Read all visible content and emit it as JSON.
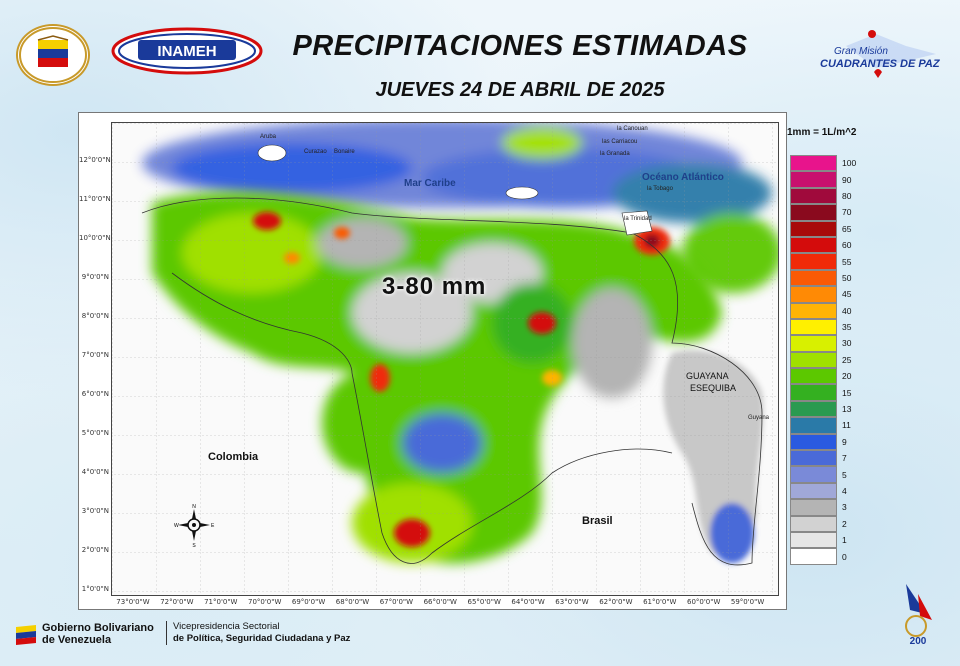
{
  "header": {
    "title": "PRECIPITACIONES ESTIMADAS",
    "date": "JUEVES 24 DE ABRIL DE 2025",
    "inameh_logo_text": "INAMEH",
    "gmcp_line1": "Gran Misión",
    "gmcp_line2": "CUADRANTES DE PAZ"
  },
  "map": {
    "rain_range": "3-80 mm",
    "lat_ticks": [
      "12°0'0\"N",
      "11°0'0\"N",
      "10°0'0\"N",
      "9°0'0\"N",
      "8°0'0\"N",
      "7°0'0\"N",
      "6°0'0\"N",
      "5°0'0\"N",
      "4°0'0\"N",
      "3°0'0\"N",
      "2°0'0\"N",
      "1°0'0\"N"
    ],
    "lon_ticks": [
      "73°0'0\"W",
      "72°0'0\"W",
      "71°0'0\"W",
      "70°0'0\"W",
      "69°0'0\"W",
      "68°0'0\"W",
      "67°0'0\"W",
      "66°0'0\"W",
      "65°0'0\"W",
      "64°0'0\"W",
      "63°0'0\"W",
      "62°0'0\"W",
      "61°0'0\"W",
      "60°0'0\"W",
      "59°0'0\"W"
    ],
    "labels": {
      "mar_caribe": "Mar Caribe",
      "oceano": "Océano Atlántico",
      "colombia": "Colombia",
      "brasil": "Brasil",
      "guayana1": "GUAYANA",
      "guayana2": "ESEQUIBA",
      "guyana": "Guyana",
      "aruba": "Aruba",
      "curazao": "Curazao",
      "bonaire": "Bonaire",
      "trinidad": "la Trinidad",
      "tobago": "la Tobago",
      "canouan": "la Canouan",
      "carriacou": "las Carriacou",
      "granada": "la Granada"
    },
    "compass": {
      "n": "N",
      "s": "S",
      "e": "E",
      "w": "W"
    }
  },
  "legend": {
    "title": "1mm = 1L/m^2",
    "items": [
      {
        "value": "100",
        "color": "#e8148c"
      },
      {
        "value": "90",
        "color": "#c8106e"
      },
      {
        "value": "80",
        "color": "#a00a3c"
      },
      {
        "value": "70",
        "color": "#8a0a1e"
      },
      {
        "value": "65",
        "color": "#a80a0a"
      },
      {
        "value": "60",
        "color": "#d40c0c"
      },
      {
        "value": "55",
        "color": "#f02a08"
      },
      {
        "value": "50",
        "color": "#fa5a05"
      },
      {
        "value": "45",
        "color": "#ff8a05"
      },
      {
        "value": "40",
        "color": "#ffb405"
      },
      {
        "value": "35",
        "color": "#fff000"
      },
      {
        "value": "30",
        "color": "#d8f000"
      },
      {
        "value": "25",
        "color": "#a0e000"
      },
      {
        "value": "20",
        "color": "#5cc800"
      },
      {
        "value": "15",
        "color": "#34b020"
      },
      {
        "value": "13",
        "color": "#2a9a50"
      },
      {
        "value": "11",
        "color": "#2a7aa8"
      },
      {
        "value": "9",
        "color": "#2a5ae0"
      },
      {
        "value": "7",
        "color": "#4a6ad8"
      },
      {
        "value": "5",
        "color": "#7a8ad8"
      },
      {
        "value": "4",
        "color": "#a0a8d8"
      },
      {
        "value": "3",
        "color": "#b4b4b4"
      },
      {
        "value": "2",
        "color": "#d2d2d2"
      },
      {
        "value": "1",
        "color": "#e6e6e6"
      },
      {
        "value": "0",
        "color": "#ffffff"
      }
    ]
  },
  "footer": {
    "gob_line1": "Gobierno Bolivariano",
    "gob_line2": "de Venezuela",
    "vice_line1": "Vicepresidencia Sectorial",
    "vice_line2": "de Política, Seguridad Ciudadana y Paz"
  }
}
